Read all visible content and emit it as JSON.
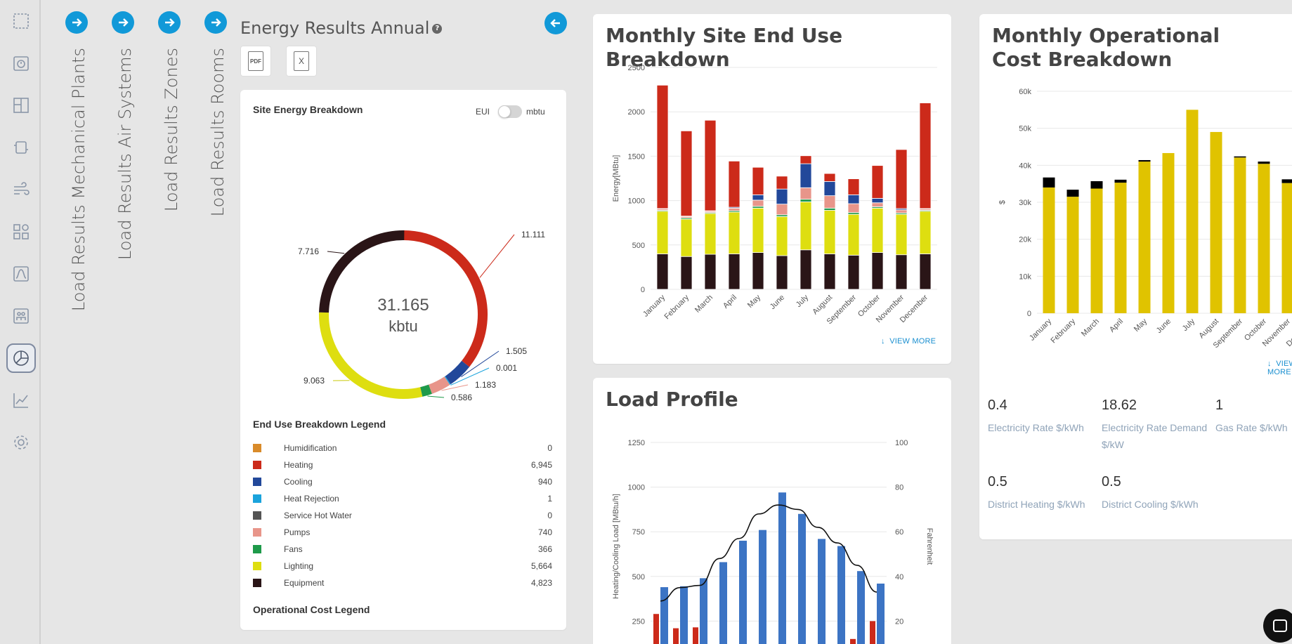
{
  "nav": [
    {
      "label": "Load Results Mechanical Plants"
    },
    {
      "label": "Load Results Air Systems"
    },
    {
      "label": "Load Results Zones"
    },
    {
      "label": "Load Results Rooms"
    }
  ],
  "page": {
    "title": "Energy Results Annual",
    "help": "?"
  },
  "files": {
    "pdf": "PDF",
    "excel": "X"
  },
  "site_energy": {
    "title": "Site Energy Breakdown",
    "toggle_left": "EUI",
    "toggle_right": "mbtu",
    "toggle_on": false,
    "total_value": "31.165",
    "total_unit": "kbtu",
    "colors": {
      "Humidification": "#d98b2a",
      "Heating": "#cc2a1a",
      "Cooling": "#22489a",
      "Heat Rejection": "#1aa3dc",
      "Service Hot Water": "#555555",
      "Pumps": "#e8958a",
      "Fans": "#1e9a4a",
      "Lighting": "#dede10",
      "Equipment": "#2a1517"
    }
  },
  "legend": {
    "title": "End Use Breakdown Legend",
    "items": [
      {
        "name": "Humidification",
        "value": "0",
        "color": "#d98b2a"
      },
      {
        "name": "Heating",
        "value": "6,945",
        "color": "#cc2a1a"
      },
      {
        "name": "Cooling",
        "value": "940",
        "color": "#22489a"
      },
      {
        "name": "Heat Rejection",
        "value": "1",
        "color": "#1aa3dc"
      },
      {
        "name": "Service Hot Water",
        "value": "0",
        "color": "#555555"
      },
      {
        "name": "Pumps",
        "value": "740",
        "color": "#e8958a"
      },
      {
        "name": "Fans",
        "value": "366",
        "color": "#1e9a4a"
      },
      {
        "name": "Lighting",
        "value": "5,664",
        "color": "#dede10"
      },
      {
        "name": "Equipment",
        "value": "4,823",
        "color": "#2a1517"
      }
    ],
    "op_title": "Operational Cost Legend"
  },
  "monthly_enduse": {
    "title": "Monthly Site End Use Breakdown",
    "view_more": "VIEW MORE"
  },
  "load_profile": {
    "title": "Load Profile"
  },
  "op_cost": {
    "title": "Monthly Operational Cost Breakdown",
    "view_more": "VIEW MORE"
  },
  "rates": [
    {
      "value": "0.4",
      "label": "Electricity Rate $/kWh"
    },
    {
      "value": "18.62",
      "label": "Electricity Rate Demand $/kW"
    },
    {
      "value": "1",
      "label": "Gas Rate $/kWh"
    },
    {
      "value": "0.5",
      "label": "District Heating $/kWh"
    },
    {
      "value": "0.5",
      "label": "District Cooling $/kWh"
    }
  ],
  "chart_data": [
    {
      "type": "pie",
      "title": "Site Energy Breakdown",
      "center_label": "31.165 kbtu",
      "slices": [
        {
          "name": "Heating",
          "value": 11.111,
          "label": "11.111"
        },
        {
          "name": "Cooling",
          "value": 1.505,
          "label": "1.505"
        },
        {
          "name": "Heat Rejection",
          "value": 0.001,
          "label": "0.001"
        },
        {
          "name": "Pumps",
          "value": 1.183,
          "label": "1.183"
        },
        {
          "name": "Fans",
          "value": 0.586,
          "label": "0.586"
        },
        {
          "name": "Lighting",
          "value": 9.063,
          "label": "9.063"
        },
        {
          "name": "Equipment",
          "value": 7.716,
          "label": "7.716"
        }
      ]
    },
    {
      "type": "bar",
      "title": "Monthly Site End Use Breakdown",
      "ylabel": "Energy[MBtu]",
      "ylim": [
        0,
        2500
      ],
      "yticks": [
        "0",
        "500",
        "1000",
        "1500",
        "2000",
        "2500"
      ],
      "categories": [
        "January",
        "February",
        "March",
        "April",
        "May",
        "June",
        "July",
        "August",
        "September",
        "October",
        "November",
        "December"
      ],
      "series": [
        {
          "name": "Equipment",
          "values": [
            400,
            370,
            395,
            400,
            415,
            380,
            445,
            400,
            385,
            415,
            390,
            400
          ]
        },
        {
          "name": "Lighting",
          "values": [
            480,
            420,
            460,
            470,
            500,
            440,
            540,
            490,
            460,
            500,
            455,
            480
          ]
        },
        {
          "name": "Fans",
          "values": [
            10,
            15,
            10,
            15,
            20,
            20,
            30,
            25,
            20,
            15,
            15,
            10
          ]
        },
        {
          "name": "Pumps",
          "values": [
            15,
            15,
            15,
            30,
            70,
            120,
            130,
            140,
            100,
            45,
            35,
            15
          ]
        },
        {
          "name": "Cooling",
          "values": [
            5,
            5,
            5,
            10,
            60,
            170,
            270,
            160,
            100,
            50,
            15,
            5
          ]
        },
        {
          "name": "Heating",
          "values": [
            1390,
            960,
            1020,
            520,
            310,
            145,
            90,
            90,
            180,
            370,
            665,
            1190
          ]
        }
      ]
    },
    {
      "type": "bar",
      "title": "Load Profile",
      "ylabel": "Heating/Cooling Load [MBtu/h]",
      "y2label": "Fahrenheit",
      "ylim": [
        0,
        1250
      ],
      "y2lim": [
        0,
        100
      ],
      "yticks": [
        "0",
        "250",
        "500",
        "750",
        "1000",
        "1250"
      ],
      "y2ticks": [
        "0",
        "20",
        "40",
        "60",
        "80",
        "100"
      ],
      "series": [
        {
          "name": "Heating",
          "values": [
            290,
            210,
            215,
            120,
            75,
            40,
            30,
            25,
            50,
            95,
            150,
            250
          ]
        },
        {
          "name": "Cooling",
          "values": [
            440,
            445,
            490,
            580,
            700,
            760,
            970,
            850,
            710,
            670,
            530,
            460
          ]
        },
        {
          "name": "Temperature",
          "axis": "right",
          "values": [
            29,
            35,
            36,
            48,
            57,
            68,
            72,
            70,
            62,
            55,
            45,
            33
          ]
        }
      ]
    },
    {
      "type": "bar",
      "title": "Monthly Operational Cost Breakdown",
      "ylabel": "$",
      "ylim": [
        0,
        60000
      ],
      "yticks": [
        "0",
        "10k",
        "20k",
        "30k",
        "40k",
        "50k",
        "60k"
      ],
      "categories": [
        "January",
        "February",
        "March",
        "April",
        "May",
        "June",
        "July",
        "August",
        "September",
        "October",
        "November",
        "December"
      ],
      "series": [
        {
          "name": "Electricity",
          "values": [
            34000,
            31500,
            33700,
            35300,
            41000,
            43300,
            55000,
            49000,
            42100,
            40400,
            35200,
            0
          ]
        },
        {
          "name": "Gas",
          "values": [
            2700,
            1900,
            2000,
            800,
            400,
            0,
            0,
            0,
            300,
            600,
            1000,
            0
          ]
        }
      ]
    }
  ]
}
